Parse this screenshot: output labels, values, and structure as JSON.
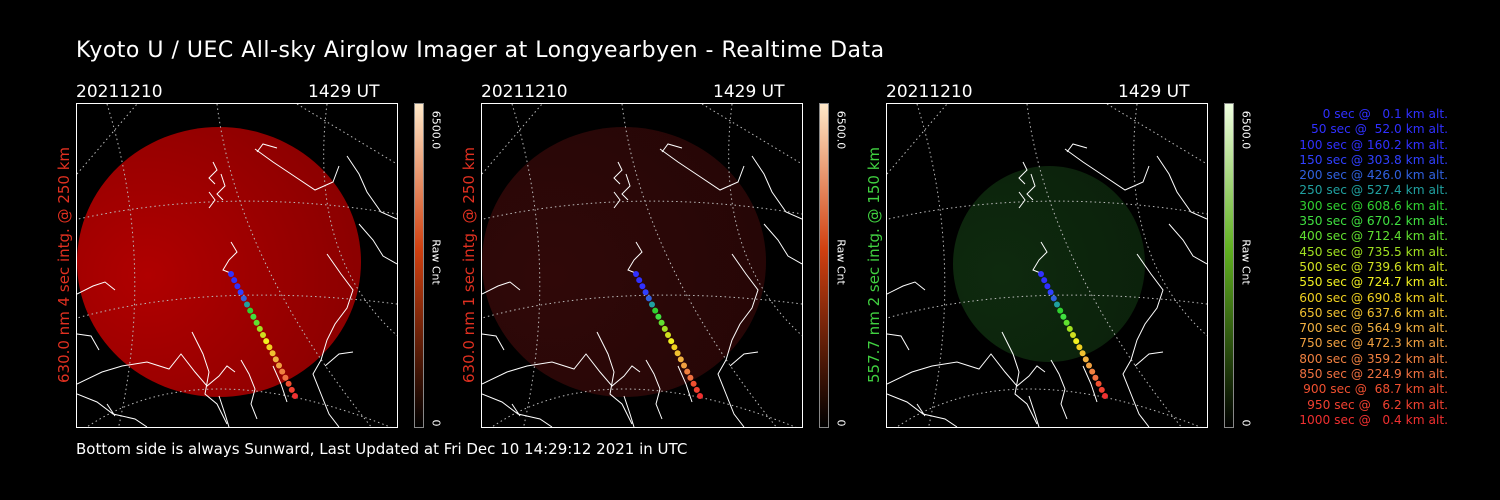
{
  "title": "Kyoto U / UEC All-sky Airglow Imager at Longyearbyen - Realtime Data",
  "footer": "Bottom side is always Sunward, Last Updated at Fri Dec 10 14:29:12 2021 in UTC",
  "panels": [
    {
      "date": "20211210",
      "time": "1429 UT",
      "side_label": "630.0 nm 4 sec intg. @ 250 km",
      "label_color": "#e03020",
      "cbar_max": "6500.0",
      "cbar_min": "0",
      "cbar_unit": "Raw Cnt",
      "glow_color": "#b00000",
      "cbar_top": "#ffe8c8",
      "cbar_mid": "#d04010",
      "cbar_bottom": "#000000"
    },
    {
      "date": "20211210",
      "time": "1429 UT",
      "side_label": "630.0 nm 1 sec intg. @ 250 km",
      "label_color": "#e03020",
      "cbar_max": "6500.0",
      "cbar_min": "0",
      "cbar_unit": "Raw Cnt",
      "glow_color": "#300808",
      "cbar_top": "#ffe8c8",
      "cbar_mid": "#d04010",
      "cbar_bottom": "#000000"
    },
    {
      "date": "20211210",
      "time": "1429 UT",
      "side_label": "557.7 nm 2 sec intg. @ 150 km",
      "label_color": "#40d040",
      "cbar_max": "6500.0",
      "cbar_min": "0",
      "cbar_unit": "Raw Cnt",
      "glow_color": "#0e2a0e",
      "cbar_top": "#f0ffe0",
      "cbar_mid": "#60b020",
      "cbar_bottom": "#000000"
    }
  ],
  "trajectory_legend": [
    {
      "text": "0 sec @   0.1 km alt.",
      "color": "#3030ff"
    },
    {
      "text": "50 sec @  52.0 km alt.",
      "color": "#3030ff"
    },
    {
      "text": "100 sec @ 160.2 km alt.",
      "color": "#3030ff"
    },
    {
      "text": "150 sec @ 303.8 km alt.",
      "color": "#3040ff"
    },
    {
      "text": "200 sec @ 426.0 km alt.",
      "color": "#3060e0"
    },
    {
      "text": "250 sec @ 527.4 km alt.",
      "color": "#20a0a0"
    },
    {
      "text": "300 sec @ 608.6 km alt.",
      "color": "#30d030"
    },
    {
      "text": "350 sec @ 670.2 km alt.",
      "color": "#40e040"
    },
    {
      "text": "400 sec @ 712.4 km alt.",
      "color": "#60e030"
    },
    {
      "text": "450 sec @ 735.5 km alt.",
      "color": "#a0e020"
    },
    {
      "text": "500 sec @ 739.6 km alt.",
      "color": "#d0e020"
    },
    {
      "text": "550 sec @ 724.7 km alt.",
      "color": "#f0f020"
    },
    {
      "text": "600 sec @ 690.8 km alt.",
      "color": "#f0d020"
    },
    {
      "text": "650 sec @ 637.6 km alt.",
      "color": "#f0c030"
    },
    {
      "text": "700 sec @ 564.9 km alt.",
      "color": "#f0b040"
    },
    {
      "text": "750 sec @ 472.3 km alt.",
      "color": "#f0a040"
    },
    {
      "text": "800 sec @ 359.2 km alt.",
      "color": "#f08040"
    },
    {
      "text": "850 sec @ 224.9 km alt.",
      "color": "#f07040"
    },
    {
      "text": "900 sec @  68.7 km alt.",
      "color": "#f05030"
    },
    {
      "text": "950 sec @   6.2 km alt.",
      "color": "#f04030"
    },
    {
      "text": "1000 sec @   0.4 km alt.",
      "color": "#f03030"
    }
  ]
}
